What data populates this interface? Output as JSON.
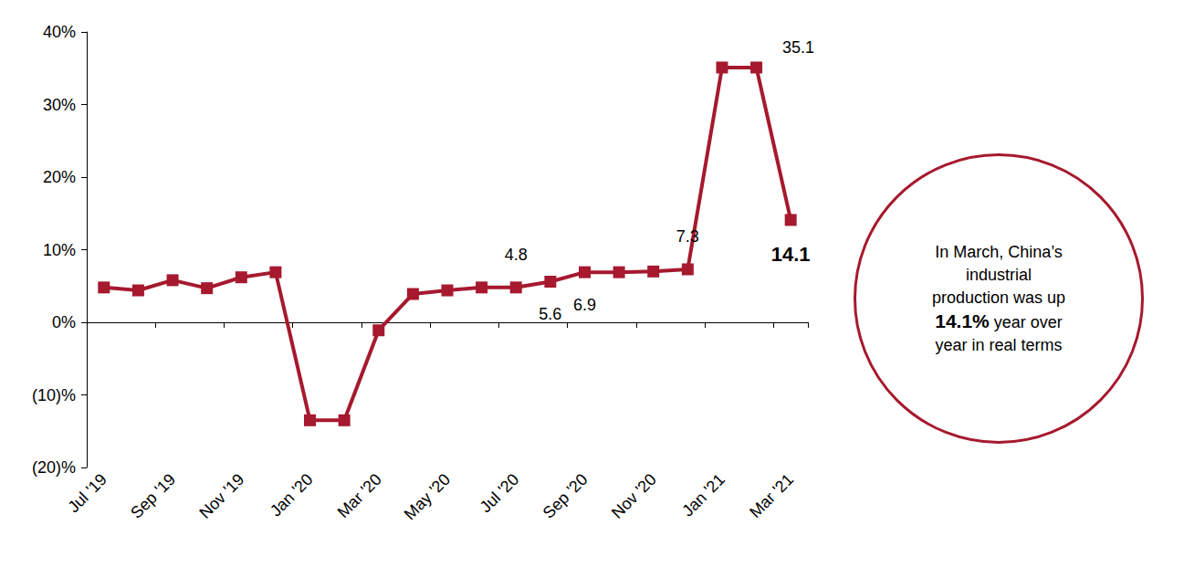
{
  "chart_data": {
    "type": "line",
    "categories": [
      "Jul '19",
      null,
      "Sep '19",
      null,
      "Nov '19",
      null,
      "Jan '20",
      null,
      "Mar '20",
      null,
      "May '20",
      null,
      "Jul '20",
      null,
      "Sep '20",
      null,
      "Nov '20",
      null,
      "Jan '21",
      null,
      "Mar '21"
    ],
    "values": [
      4.8,
      4.4,
      5.8,
      4.7,
      6.2,
      6.9,
      -13.5,
      -13.5,
      -1.1,
      3.9,
      4.4,
      4.8,
      4.8,
      5.6,
      6.9,
      6.9,
      7.0,
      7.3,
      35.1,
      35.1,
      14.1
    ],
    "value_labels": [
      null,
      null,
      null,
      null,
      null,
      null,
      null,
      null,
      null,
      null,
      null,
      null,
      "4.8",
      "5.6",
      "6.9",
      null,
      null,
      "7.3",
      null,
      "35.1",
      "14.1"
    ],
    "color": "#a6192e",
    "marker": "square",
    "ylim": [
      -20,
      40
    ],
    "yticks": [
      {
        "value": -20,
        "label": "(20)%"
      },
      {
        "value": -10,
        "label": "(10)%"
      },
      {
        "value": 0,
        "label": "0%"
      },
      {
        "value": 10,
        "label": "10%"
      },
      {
        "value": 20,
        "label": "20%"
      },
      {
        "value": 30,
        "label": "30%"
      },
      {
        "value": 40,
        "label": "40%"
      }
    ],
    "grid": false,
    "annotation": [
      "In March, China’s industrial production was up ",
      "14.1%",
      " year over year in real terms"
    ]
  }
}
